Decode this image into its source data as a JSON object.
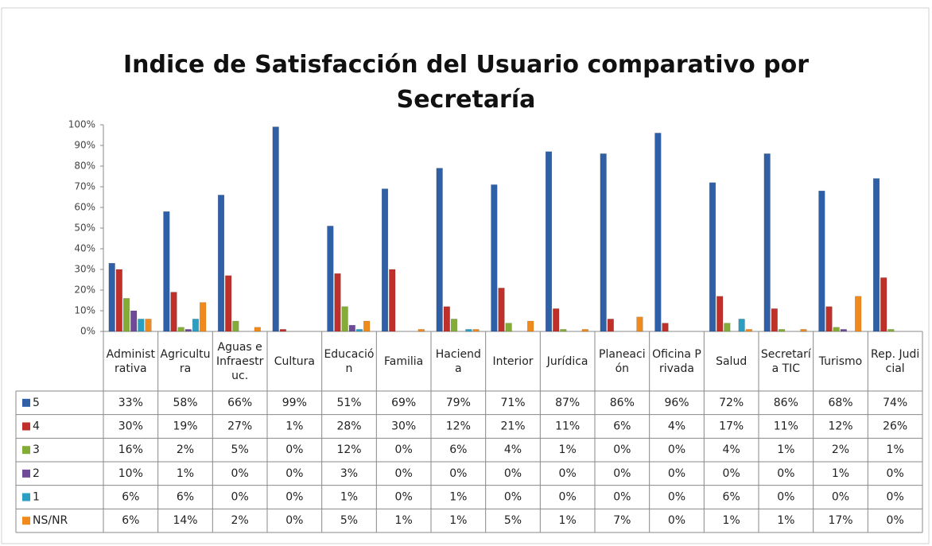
{
  "chart_data": {
    "type": "bar",
    "title": "Indice de Satisfacción del Usuario comparativo por Secretaría",
    "categories": [
      "Administrativa",
      "Agricultura",
      "Aguas e Infraestruc.",
      "Cultura",
      "Educación",
      "Familia",
      "Hacienda",
      "Interior",
      "Jurídica",
      "Planeación",
      "Oficina Privada",
      "Salud",
      "Secretaría TIC",
      "Turismo",
      "Rep. Judicial"
    ],
    "series": [
      {
        "name": "5",
        "color": "#2f5fa7",
        "values": [
          33,
          58,
          66,
          99,
          51,
          69,
          79,
          71,
          87,
          86,
          96,
          72,
          86,
          68,
          74
        ],
        "value_labels": [
          "33%",
          "58%",
          "66%",
          "99%",
          "51%",
          "69%",
          "79%",
          "71%",
          "87%",
          "86%",
          "96%",
          "72%",
          "86%",
          "68%",
          "74%"
        ]
      },
      {
        "name": "4",
        "color": "#c0302b",
        "values": [
          30,
          19,
          27,
          1,
          28,
          30,
          12,
          21,
          11,
          6,
          4,
          17,
          11,
          12,
          26
        ],
        "value_labels": [
          "30%",
          "19%",
          "27%",
          "1%",
          "28%",
          "30%",
          "12%",
          "21%",
          "11%",
          "6%",
          "4%",
          "17%",
          "11%",
          "12%",
          "26%"
        ]
      },
      {
        "name": "3",
        "color": "#84ad38",
        "values": [
          16,
          2,
          5,
          0,
          12,
          0,
          6,
          4,
          1,
          0,
          0,
          4,
          1,
          2,
          1
        ],
        "value_labels": [
          "16%",
          "2%",
          "5%",
          "0%",
          "12%",
          "0%",
          "6%",
          "4%",
          "1%",
          "0%",
          "0%",
          "4%",
          "1%",
          "2%",
          "1%"
        ]
      },
      {
        "name": "2",
        "color": "#6f4a99",
        "values": [
          10,
          1,
          0,
          0,
          3,
          0,
          0,
          0,
          0,
          0,
          0,
          0,
          0,
          1,
          0
        ],
        "value_labels": [
          "10%",
          "1%",
          "0%",
          "0%",
          "3%",
          "0%",
          "0%",
          "0%",
          "0%",
          "0%",
          "0%",
          "0%",
          "0%",
          "1%",
          "0%"
        ]
      },
      {
        "name": "1",
        "color": "#2a9fc2",
        "values": [
          6,
          6,
          0,
          0,
          1,
          0,
          1,
          0,
          0,
          0,
          0,
          6,
          0,
          0,
          0
        ],
        "value_labels": [
          "6%",
          "6%",
          "0%",
          "0%",
          "1%",
          "0%",
          "1%",
          "0%",
          "0%",
          "0%",
          "0%",
          "6%",
          "0%",
          "0%",
          "0%"
        ]
      },
      {
        "name": "NS/NR",
        "color": "#f08a1c",
        "values": [
          6,
          14,
          2,
          0,
          5,
          1,
          1,
          5,
          1,
          7,
          0,
          1,
          1,
          17,
          0
        ],
        "value_labels": [
          "6%",
          "14%",
          "2%",
          "0%",
          "5%",
          "1%",
          "1%",
          "5%",
          "1%",
          "7%",
          "0%",
          "1%",
          "1%",
          "17%",
          "0%"
        ]
      }
    ],
    "ylim": [
      0,
      100
    ],
    "yticks": [
      {
        "value": 0,
        "label": "0%"
      },
      {
        "value": 10,
        "label": "10%"
      },
      {
        "value": 20,
        "label": "20%"
      },
      {
        "value": 30,
        "label": "30%"
      },
      {
        "value": 40,
        "label": "40%"
      },
      {
        "value": 50,
        "label": "50%"
      },
      {
        "value": 60,
        "label": "60%"
      },
      {
        "value": 70,
        "label": "70%"
      },
      {
        "value": 80,
        "label": "80%"
      },
      {
        "value": 90,
        "label": "90%"
      },
      {
        "value": 100,
        "label": "100%"
      }
    ],
    "grid": false
  }
}
